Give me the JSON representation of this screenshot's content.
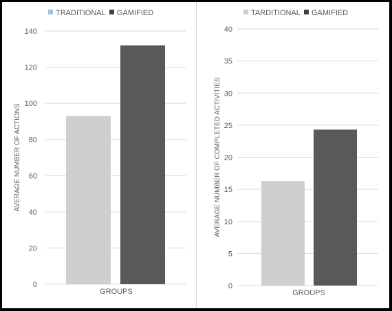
{
  "chart_data": [
    {
      "type": "bar",
      "categories": [
        "GROUPS"
      ],
      "series": [
        {
          "name": "TRADITIONAL",
          "values": [
            93
          ],
          "color": "#d0cece"
        },
        {
          "name": "GAMIFIED",
          "values": [
            132
          ],
          "color": "#595959"
        }
      ],
      "legend_swatch_colors": [
        "#a3bde3",
        "#404040"
      ],
      "title": "",
      "xlabel": "GROUPS",
      "ylabel": "AVERAGE NUMBER OF ACTIONS",
      "ylim": [
        0,
        140
      ],
      "yticks": [
        0,
        20,
        40,
        60,
        80,
        100,
        120,
        140
      ],
      "grid": true,
      "legend": "top"
    },
    {
      "type": "bar",
      "categories": [
        "GROUPS"
      ],
      "series": [
        {
          "name": "TARDITIONAL",
          "values": [
            16.3
          ],
          "color": "#d0cece"
        },
        {
          "name": "GAMIFIED",
          "values": [
            24.3
          ],
          "color": "#595959"
        }
      ],
      "legend_swatch_colors": [
        "#d0cece",
        "#404040"
      ],
      "title": "",
      "xlabel": "GROUPS",
      "ylabel": "AVERAGE NUMBER OF COMPLETED ACTIVITIES",
      "ylim": [
        0,
        40
      ],
      "yticks": [
        0,
        5,
        10,
        15,
        20,
        25,
        30,
        35,
        40
      ],
      "grid": true,
      "legend": "top"
    }
  ]
}
